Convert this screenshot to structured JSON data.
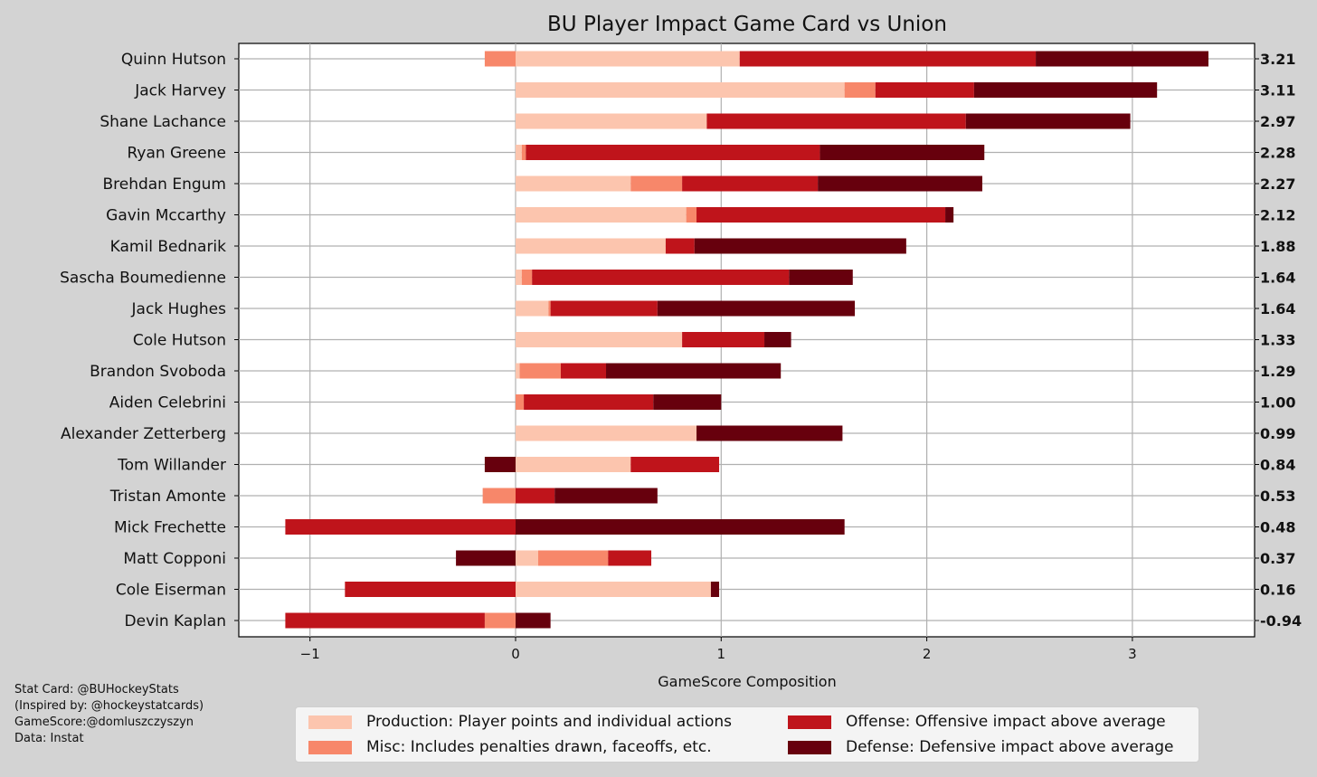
{
  "chart_data": {
    "type": "bar",
    "orientation": "horizontal",
    "stacked": true,
    "title": "BU Player Impact Game Card vs Union",
    "xlabel": "GameScore Composition",
    "ylabel": "",
    "xlim": [
      -1.34,
      3.6
    ],
    "xticks": [
      -1,
      0,
      1,
      2,
      3
    ],
    "xtick_labels": [
      "−1",
      "0",
      "1",
      "2",
      "3"
    ],
    "grid": true,
    "legend_position": "bottom",
    "colors": {
      "production": "#fcc5ae",
      "misc": "#f7876a",
      "offense": "#bf141b",
      "defense": "#67000d"
    },
    "categories": [
      "Quinn Hutson",
      "Jack Harvey",
      "Shane Lachance",
      "Ryan Greene",
      "Brehdan Engum",
      "Gavin Mccarthy",
      "Kamil Bednarik",
      "Sascha Boumedienne",
      "Jack Hughes",
      "Cole Hutson",
      "Brandon Svoboda",
      "Aiden Celebrini",
      "Alexander Zetterberg",
      "Tom Willander",
      "Tristan Amonte",
      "Mick Frechette",
      "Matt Copponi",
      "Cole Eiserman",
      "Devin Kaplan"
    ],
    "totals": [
      "3.21",
      "3.11",
      "2.97",
      "2.28",
      "2.27",
      "2.12",
      "1.88",
      "1.64",
      "1.64",
      "1.33",
      "1.29",
      "1.00",
      "0.99",
      "0.84",
      "0.53",
      "0.48",
      "0.37",
      "0.16",
      "-0.94"
    ],
    "series": [
      {
        "key": "production",
        "name": "Production: Player points and individual actions",
        "values": [
          1.09,
          1.6,
          0.93,
          0.03,
          0.56,
          0.83,
          0.73,
          0.03,
          0.16,
          0.81,
          0.02,
          0.0,
          0.88,
          0.56,
          0.0,
          0.0,
          0.11,
          0.95,
          0.0
        ]
      },
      {
        "key": "misc",
        "name": "Misc: Includes penalties drawn, faceoffs, etc.",
        "values": [
          -0.15,
          0.15,
          0.0,
          0.02,
          0.25,
          0.05,
          0.0,
          0.05,
          0.01,
          0.0,
          0.2,
          0.04,
          0.0,
          0.0,
          -0.16,
          0.0,
          0.34,
          0.0,
          -0.15
        ]
      },
      {
        "key": "offense",
        "name": "Offense: Offensive impact above average",
        "values": [
          1.44,
          0.48,
          1.26,
          1.43,
          0.66,
          1.21,
          0.14,
          1.25,
          0.52,
          0.4,
          0.22,
          0.63,
          0.0,
          0.43,
          0.19,
          -1.12,
          0.21,
          -0.83,
          -0.97
        ]
      },
      {
        "key": "defense",
        "name": "Defense: Defensive impact above average",
        "values": [
          0.84,
          0.89,
          0.8,
          0.8,
          0.8,
          0.04,
          1.03,
          0.31,
          0.96,
          0.13,
          0.85,
          0.33,
          0.71,
          -0.15,
          0.5,
          1.6,
          -0.29,
          0.04,
          0.17
        ]
      }
    ]
  },
  "credits": [
    "Stat Card: @BUHockeyStats",
    "(Inspired by: @hockeystatcards)",
    "GameScore:@domluszczyszyn",
    "Data: Instat"
  ]
}
